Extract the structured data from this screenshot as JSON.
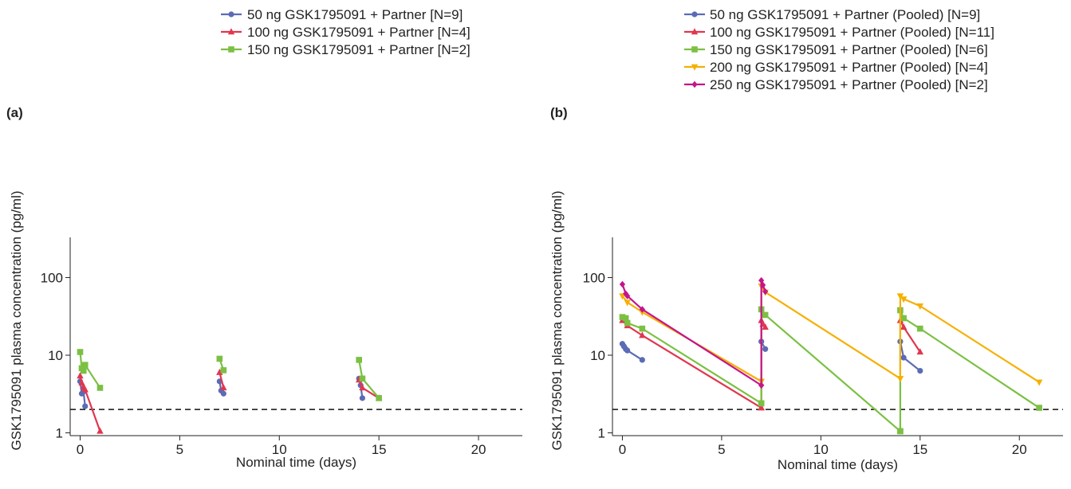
{
  "chart_data": [
    {
      "type": "line",
      "panel_label": "(a)",
      "xlabel": "Nominal time (days)",
      "ylabel": "GSK1795091 plasma concentration (pg/ml)",
      "xlim": [
        -0.5,
        22.2
      ],
      "ylim": [
        0.92,
        330
      ],
      "y_scale": "log",
      "xticks": [
        0,
        5,
        10,
        15,
        20
      ],
      "yticks": [
        1,
        10,
        100
      ],
      "reference_line": {
        "y": 2.0,
        "style": "dashed"
      },
      "legend_position": "top-center",
      "grid": false,
      "series": [
        {
          "name": "50 ng GSK1795091 + Partner [N=9]",
          "color": "#5b6bb5",
          "marker": "circle",
          "segments": [
            [
              [
                0.0,
                4.6
              ],
              [
                0.08,
                3.2
              ],
              [
                0.17,
                3.4
              ],
              [
                0.25,
                2.2
              ]
            ],
            [
              [
                7.0,
                4.6
              ],
              [
                7.08,
                3.5
              ],
              [
                7.2,
                3.2
              ]
            ],
            [
              [
                14.0,
                5.0
              ],
              [
                14.08,
                4.1
              ],
              [
                14.17,
                2.8
              ]
            ]
          ]
        },
        {
          "name": "100 ng GSK1795091 + Partner [N=4]",
          "color": "#e0374f",
          "marker": "triangle",
          "segments": [
            [
              [
                0.0,
                5.4
              ],
              [
                0.08,
                4.4
              ],
              [
                0.17,
                3.9
              ],
              [
                0.25,
                3.6
              ],
              [
                1.0,
                1.05
              ]
            ],
            [
              [
                7.0,
                6.0
              ],
              [
                7.2,
                3.8
              ]
            ],
            [
              [
                14.0,
                4.8
              ],
              [
                14.17,
                3.8
              ],
              [
                15.0,
                2.8
              ]
            ]
          ]
        },
        {
          "name": "150 ng GSK1795091 + Partner [N=2]",
          "color": "#7bc043",
          "marker": "square",
          "segments": [
            [
              [
                0.0,
                11.0
              ],
              [
                0.08,
                6.8
              ],
              [
                0.17,
                6.3
              ],
              [
                0.25,
                7.5
              ],
              [
                1.0,
                3.8
              ]
            ],
            [
              [
                7.0,
                9.0
              ],
              [
                7.2,
                6.4
              ]
            ],
            [
              [
                14.0,
                8.7
              ],
              [
                14.17,
                5.0
              ],
              [
                15.0,
                2.8
              ]
            ]
          ]
        }
      ]
    },
    {
      "type": "line",
      "panel_label": "(b)",
      "xlabel": "Nominal time (days)",
      "ylabel": "GSK1795091 plasma concentration (pg/ml)",
      "xlim": [
        -0.5,
        22.2
      ],
      "ylim": [
        0.92,
        330
      ],
      "y_scale": "log",
      "xticks": [
        0,
        5,
        10,
        15,
        20
      ],
      "yticks": [
        1,
        10,
        100
      ],
      "reference_line": {
        "y": 2.0,
        "style": "dashed"
      },
      "legend_position": "top-right",
      "grid": false,
      "series": [
        {
          "name": "50 ng GSK1795091 + Partner (Pooled) [N=9]",
          "color": "#5b6bb5",
          "marker": "circle",
          "segments": [
            [
              [
                0.0,
                14.0
              ],
              [
                0.08,
                13.0
              ],
              [
                0.17,
                12.0
              ],
              [
                0.25,
                11.5
              ],
              [
                1.0,
                8.7
              ]
            ],
            [
              [
                7.0,
                15.0
              ],
              [
                7.2,
                12.0
              ]
            ],
            [
              [
                14.0,
                15.0
              ],
              [
                14.17,
                9.3
              ],
              [
                15.0,
                6.3
              ]
            ]
          ]
        },
        {
          "name": "100 ng GSK1795091 + Partner (Pooled) [N=11]",
          "color": "#e0374f",
          "marker": "triangle",
          "segments": [
            [
              [
                0.0,
                28.0
              ],
              [
                0.25,
                24.0
              ],
              [
                1.0,
                18.0
              ],
              [
                7.0,
                2.1
              ]
            ],
            [
              [
                7.0,
                2.1
              ],
              [
                7.0,
                28.0
              ],
              [
                7.08,
                25.0
              ],
              [
                7.2,
                23.0
              ]
            ],
            [
              [
                14.0,
                28.0
              ],
              [
                14.17,
                23.0
              ],
              [
                15.0,
                11.0
              ]
            ]
          ]
        },
        {
          "name": "150 ng GSK1795091 + Partner (Pooled) [N=6]",
          "color": "#7bc043",
          "marker": "square",
          "segments": [
            [
              [
                0.0,
                31.0
              ],
              [
                0.17,
                30.0
              ],
              [
                0.25,
                26.0
              ],
              [
                1.0,
                22.0
              ],
              [
                7.0,
                2.4
              ]
            ],
            [
              [
                7.0,
                2.4
              ],
              [
                7.0,
                39.0
              ],
              [
                7.2,
                33.0
              ],
              [
                14.0,
                1.05
              ]
            ],
            [
              [
                14.0,
                1.05
              ],
              [
                14.0,
                38.0
              ],
              [
                14.17,
                30.0
              ],
              [
                15.0,
                22.0
              ],
              [
                21.0,
                2.1
              ]
            ]
          ]
        },
        {
          "name": "200 ng GSK1795091 + Partner (Pooled) [N=4]",
          "color": "#f5b000",
          "marker": "triangle-down",
          "segments": [
            [
              [
                0.0,
                58.0
              ],
              [
                0.25,
                48.0
              ],
              [
                1.0,
                36.0
              ],
              [
                7.0,
                4.6
              ]
            ],
            [
              [
                7.0,
                4.6
              ],
              [
                7.0,
                78.0
              ],
              [
                7.2,
                65.0
              ],
              [
                14.0,
                5.0
              ]
            ],
            [
              [
                14.0,
                5.0
              ],
              [
                14.0,
                58.0
              ],
              [
                14.17,
                53.0
              ],
              [
                15.0,
                43.0
              ],
              [
                21.0,
                4.5
              ]
            ]
          ]
        },
        {
          "name": "250 ng GSK1795091 + Partner (Pooled) [N=2]",
          "color": "#c4158b",
          "marker": "diamond",
          "segments": [
            [
              [
                0.0,
                82.0
              ],
              [
                0.17,
                62.0
              ],
              [
                0.25,
                58.0
              ],
              [
                1.0,
                39.0
              ],
              [
                7.0,
                4.1
              ]
            ],
            [
              [
                7.0,
                4.1
              ],
              [
                7.0,
                92.0
              ],
              [
                7.08,
                80.0
              ],
              [
                7.2,
                66.0
              ]
            ]
          ]
        }
      ]
    }
  ]
}
